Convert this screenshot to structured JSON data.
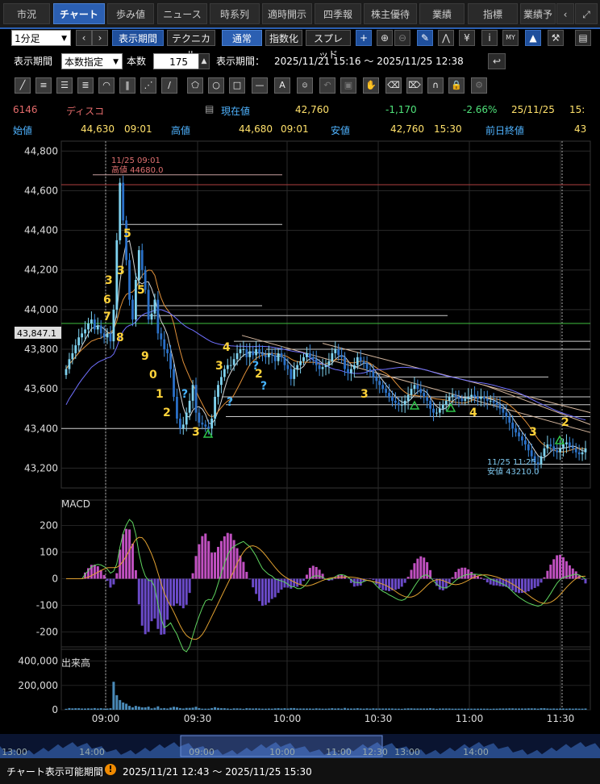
{
  "tabs": [
    "市況",
    "チャート",
    "歩み値",
    "ニュース",
    "時系列",
    "適時開示",
    "四季報",
    "株主優待",
    "業績",
    "指標",
    "業績予"
  ],
  "toolbar": {
    "interval": "1分足",
    "period_button": "表示期間",
    "technical": "テクニカル",
    "normal": "通常",
    "index": "指数化",
    "spread": "スプレッド"
  },
  "period_row": {
    "label": "表示期間",
    "mode": "本数指定",
    "count_label": "本数",
    "count": "175",
    "range_label": "表示期間：",
    "range": "2025/11/21 15:16 〜 2025/11/25 12:38"
  },
  "quote": {
    "code": "6146",
    "name": "ディスコ",
    "current_label": "現在値",
    "current": "42,760",
    "change": "-1,170",
    "change_pct": "-2.66%",
    "datetime": "25/11/25",
    "time": "15:",
    "open_label": "始値",
    "open": "44,630",
    "open_time": "09:01",
    "high_label": "高値",
    "high": "44,680",
    "high_time": "09:01",
    "low_label": "安値",
    "low": "42,760",
    "low_time": "15:30",
    "prev_label": "前日終値",
    "prev": "43"
  },
  "chart_data": [
    {
      "type": "candlestick",
      "title": "",
      "y_ticks": [
        "44,800",
        "44,600",
        "44,400",
        "44,200",
        "44,000",
        "43,800",
        "43,600",
        "43,400",
        "43,200"
      ],
      "ylim": [
        43100,
        44850
      ],
      "current_price_tag": "43,847.1",
      "high_annotation": {
        "time": "11/25 09:01",
        "label": "高値 44680.0"
      },
      "low_annotation": {
        "time": "11/25 11:25",
        "label": "安値 43210.0"
      },
      "closes": [
        43700,
        43750,
        43780,
        43820,
        43860,
        43880,
        43900,
        43930,
        43950,
        43900,
        43920,
        43880,
        43860,
        43880,
        43840,
        44000,
        44350,
        44640,
        44450,
        44250,
        44050,
        43950,
        44150,
        44300,
        44200,
        44100,
        43950,
        43980,
        44050,
        43880,
        43850,
        43800,
        43780,
        43700,
        43560,
        43450,
        43400,
        43420,
        43480,
        43540,
        43620,
        43480,
        43430,
        43420,
        43410,
        43400,
        43450,
        43560,
        43620,
        43660,
        43700,
        43720,
        43720,
        43750,
        43780,
        43800,
        43800,
        43760,
        43790,
        43770,
        43800,
        43780,
        43770,
        43760,
        43780,
        43770,
        43740,
        43780,
        43760,
        43720,
        43700,
        43650,
        43700,
        43720,
        43740,
        43760,
        43780,
        43760,
        43750,
        43720,
        43700,
        43710,
        43720,
        43740,
        43780,
        43800,
        43770,
        43760,
        43700,
        43680,
        43700,
        43720,
        43760,
        43740,
        43730,
        43700,
        43690,
        43660,
        43640,
        43620,
        43600,
        43580,
        43560,
        43540,
        43530,
        43520,
        43520,
        43540,
        43570,
        43600,
        43620,
        43600,
        43580,
        43560,
        43540,
        43500,
        43480,
        43480,
        43500,
        43520,
        43540,
        43560,
        43570,
        43560,
        43550,
        43540,
        43550,
        43560,
        43570,
        43560,
        43550,
        43560,
        43550,
        43540,
        43540,
        43530,
        43520,
        43500,
        43480,
        43460,
        43430,
        43400,
        43380,
        43360,
        43340,
        43320,
        43290,
        43260,
        43230,
        43220,
        43260,
        43300,
        43320,
        43310,
        43290,
        43280,
        43300,
        43320,
        43330,
        43310,
        43300,
        43280,
        43270,
        43280,
        43300
      ]
    },
    {
      "type": "line",
      "title": "MACD",
      "y_ticks": [
        "200",
        "100",
        "0",
        "-100",
        "-200"
      ],
      "ylim": [
        -250,
        250
      ]
    },
    {
      "type": "bar",
      "title": "出来高",
      "y_ticks": [
        "400,000",
        "200,000",
        "0"
      ],
      "ylim": [
        0,
        450000
      ]
    }
  ],
  "x_axis": [
    "09:00",
    "09:30",
    "10:00",
    "10:30",
    "11:00",
    "11:30"
  ],
  "overview_axis": [
    "13:00",
    "14:00",
    "09:00",
    "10:00",
    "11:00",
    "12:30",
    "13:00",
    "14:00"
  ],
  "footer": {
    "label": "チャート表示可能期間",
    "range": "2025/11/21 12:43 〜 2025/11/25 15:30"
  },
  "colors": {
    "up": "#7fd3f0",
    "down": "#2a70c8",
    "accent": "#2b5fb2",
    "count": "#ffd33a",
    "bg": "#000000"
  },
  "count_labels": [
    "5",
    "3",
    "3",
    "5",
    "6",
    "7",
    "8",
    "9",
    "0",
    "1",
    "2",
    "3",
    "4",
    "3",
    "?",
    "?",
    "?",
    "?",
    "2",
    "3",
    "4",
    "3",
    "2"
  ]
}
